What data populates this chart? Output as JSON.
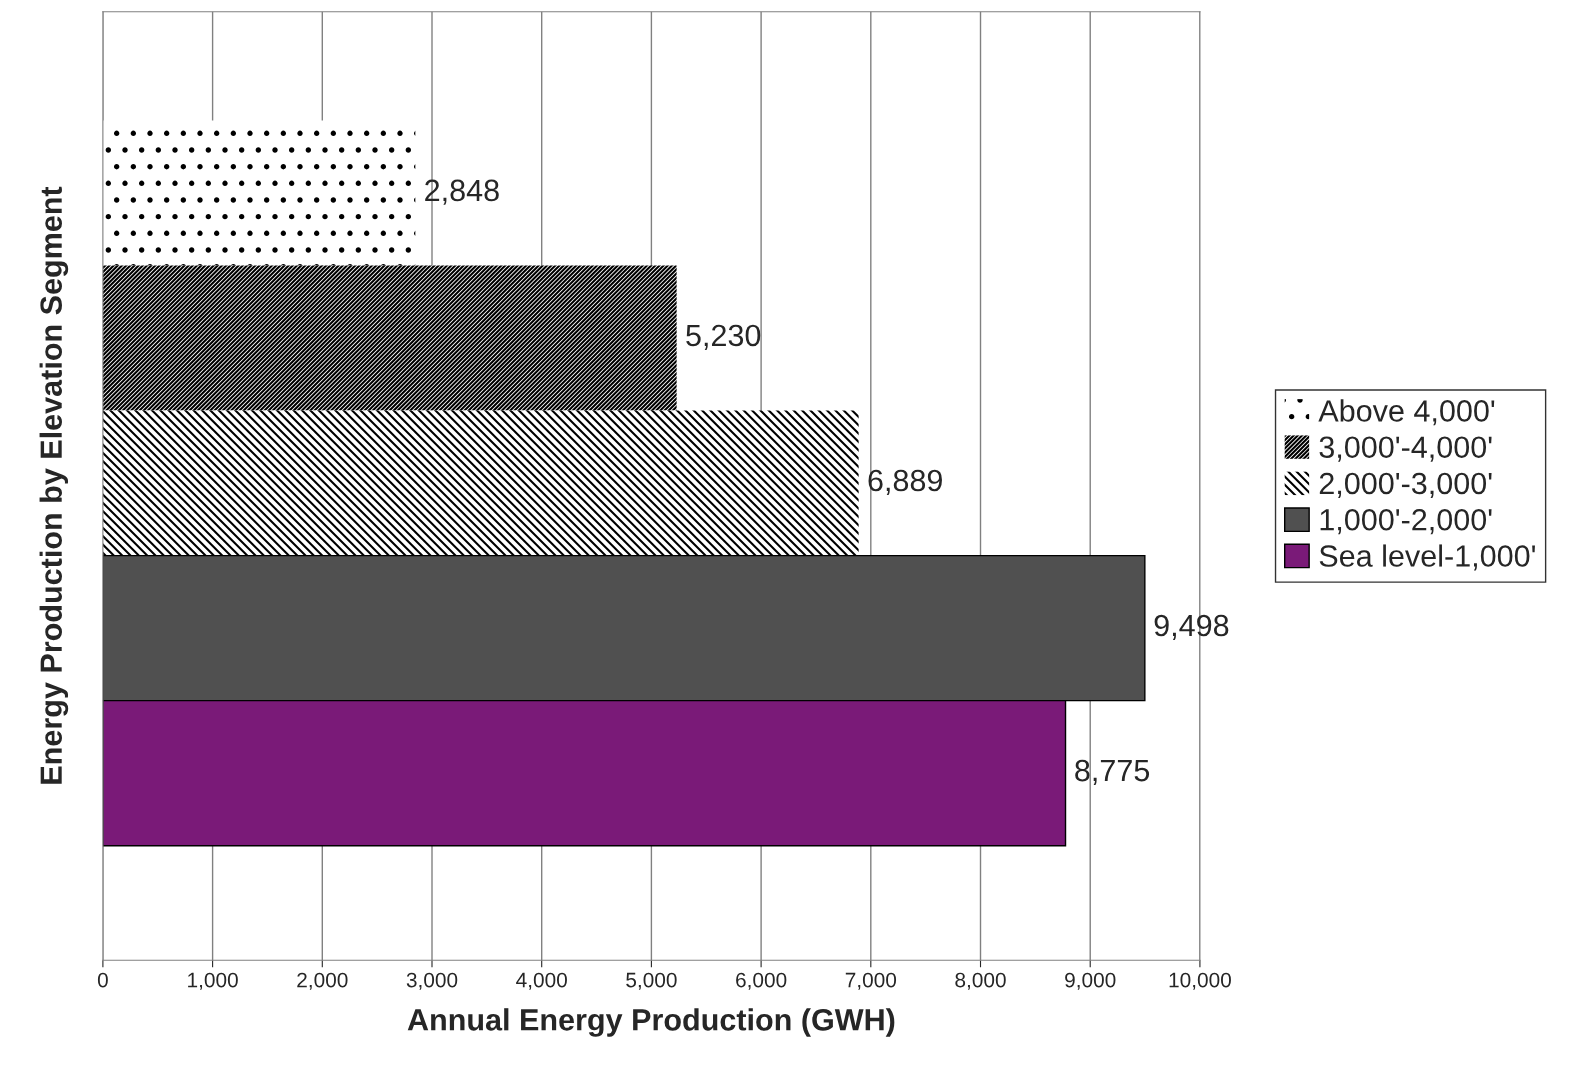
{
  "chart_data": {
    "type": "bar",
    "orientation": "horizontal",
    "xlabel": "Annual Energy Production (GWH)",
    "ylabel": "Energy Production by Elevation Segment",
    "categories": [
      null
    ],
    "series": [
      {
        "name": "Above 4,000'",
        "color": "#ffffff",
        "values": [
          2848
        ],
        "value_labels": [
          "2,848"
        ]
      },
      {
        "name": "3,000'-4,000'",
        "color": "#ffffff",
        "values": [
          5230
        ],
        "value_labels": [
          "5,230"
        ]
      },
      {
        "name": "2,000'-3,000'",
        "color": "#ffffff",
        "values": [
          6889
        ],
        "value_labels": [
          "6,889"
        ]
      },
      {
        "name": "1,000'-2,000'",
        "color": "#505050",
        "values": [
          9498
        ],
        "value_labels": [
          "9,498"
        ]
      },
      {
        "name": "Sea level-1,000'",
        "color": "#7a1a78",
        "values": [
          8775
        ],
        "value_labels": [
          "8,775"
        ]
      }
    ],
    "xlim": [
      0,
      10000
    ],
    "xticks": [
      0,
      {
        "value": 1000,
        "label": "1,000"
      },
      {
        "value": 2000,
        "label": "2,000"
      },
      {
        "value": 3000,
        "label": "3,000"
      },
      {
        "value": 4000,
        "label": "4,000"
      },
      {
        "value": 5000,
        "label": "5,000"
      },
      {
        "value": 6000,
        "label": "6,000"
      },
      {
        "value": 7000,
        "label": "7,000"
      },
      {
        "value": 8000,
        "label": "8,000"
      },
      {
        "value": 9000,
        "label": "9,000"
      },
      {
        "value": 10000,
        "label": "10,000"
      }
    ],
    "grid": "x",
    "legend": "right",
    "tick_labels": "x"
  }
}
